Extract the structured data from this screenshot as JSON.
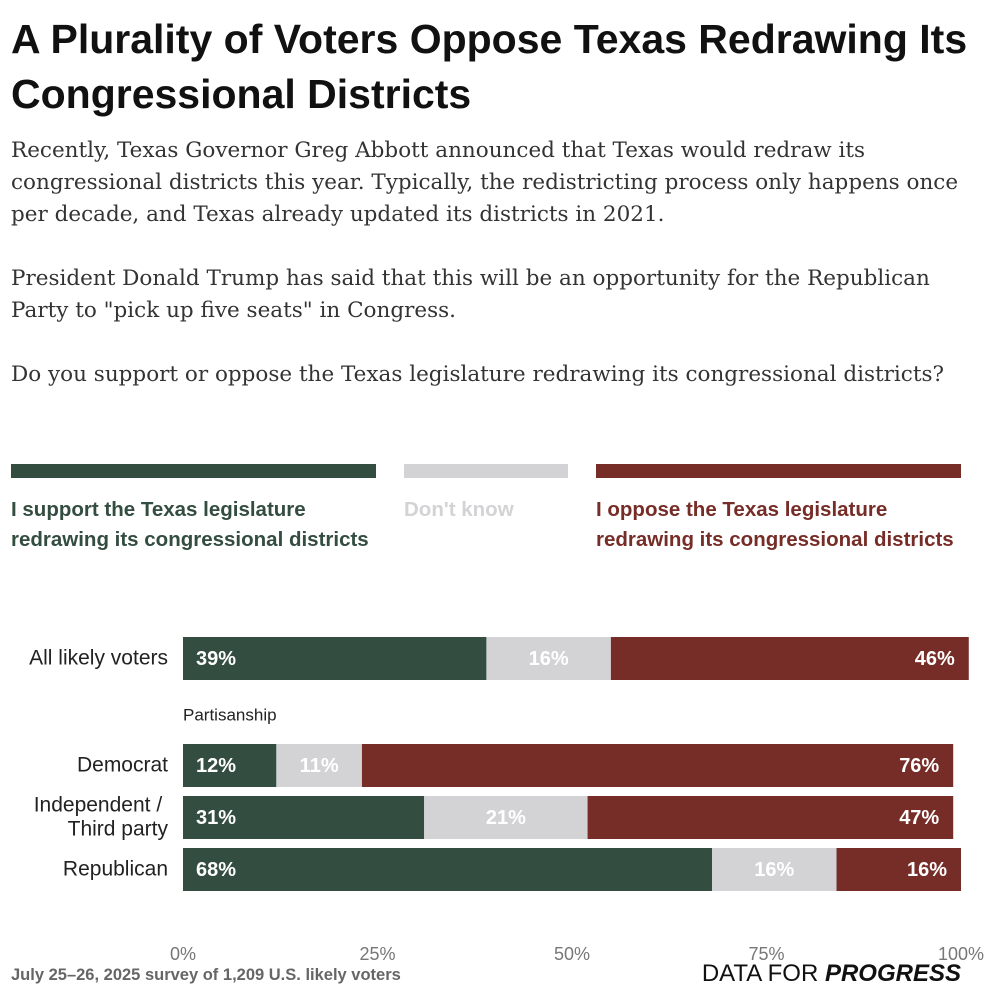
{
  "chart_data": {
    "type": "stacked_bar_horizontal",
    "title": "A Plurality of Voters Oppose Texas Redrawing Its Congressional Districts",
    "intro": [
      "Recently, Texas Governor Greg Abbott announced that Texas would redraw its congressional districts this year. Typically, the redistricting process only happens once per decade, and Texas already updated its districts in 2021.",
      "President Donald Trump has said that this will be an opportunity for the Republican Party to \"pick up five seats\" in Congress.",
      "Do you support or oppose the Texas legislature redrawing its congressional districts?"
    ],
    "group_label": "Partisanship",
    "categories": [
      "All likely voters",
      "Democrat",
      "Independent / Third party",
      "Republican"
    ],
    "series": [
      {
        "name": "I support the Texas legislature redrawing its congressional districts",
        "color": "#344d41",
        "label_color": "#ffffff",
        "values": [
          39,
          12,
          31,
          68
        ],
        "value_labels": [
          "39%",
          "12%",
          "31%",
          "68%"
        ]
      },
      {
        "name": "Don't know",
        "color": "#d3d3d5",
        "label_color": "#ffffff",
        "values": [
          16,
          11,
          21,
          16
        ],
        "value_labels": [
          "16%",
          "11%",
          "21%",
          "16%"
        ]
      },
      {
        "name": "I oppose the Texas legislature redrawing its congressional districts",
        "color": "#772d27",
        "label_color": "#ffffff",
        "values": [
          46,
          76,
          47,
          16
        ],
        "value_labels": [
          "46%",
          "76%",
          "47%",
          "16%"
        ]
      }
    ],
    "xlim": [
      0,
      100
    ],
    "xticks": [
      {
        "value": 0,
        "label": "0%"
      },
      {
        "value": 25,
        "label": "25%"
      },
      {
        "value": 50,
        "label": "50%"
      },
      {
        "value": 75,
        "label": "75%"
      },
      {
        "value": 100,
        "label": "100%"
      }
    ],
    "source": "July 25–26, 2025 survey of 1,209 U.S. likely voters",
    "brand": [
      "DATA FOR",
      "PROGRESS"
    ]
  }
}
